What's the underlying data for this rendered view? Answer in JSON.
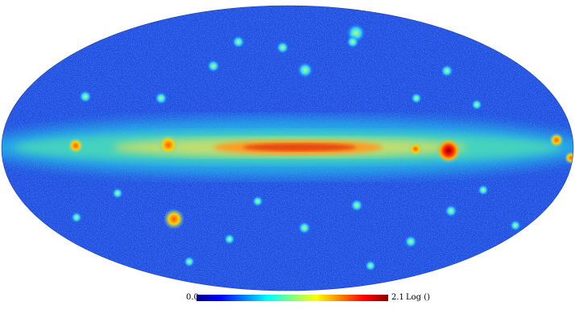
{
  "colorbar": {
    "min_label": "0.0",
    "max_label": "2.1",
    "unit_label": "Log ()",
    "colors": [
      "#00008b",
      "#0000ff",
      "#0080ff",
      "#00ffff",
      "#80ff80",
      "#ffff00",
      "#ff8000",
      "#ff0000",
      "#8b0000"
    ]
  },
  "map": {
    "projection": "mollweide",
    "background_color": "#2251e4",
    "band_colors": [
      "#26c3e8",
      "#4fe0b0",
      "#d8e060",
      "#ff9a20",
      "#e64010"
    ]
  }
}
